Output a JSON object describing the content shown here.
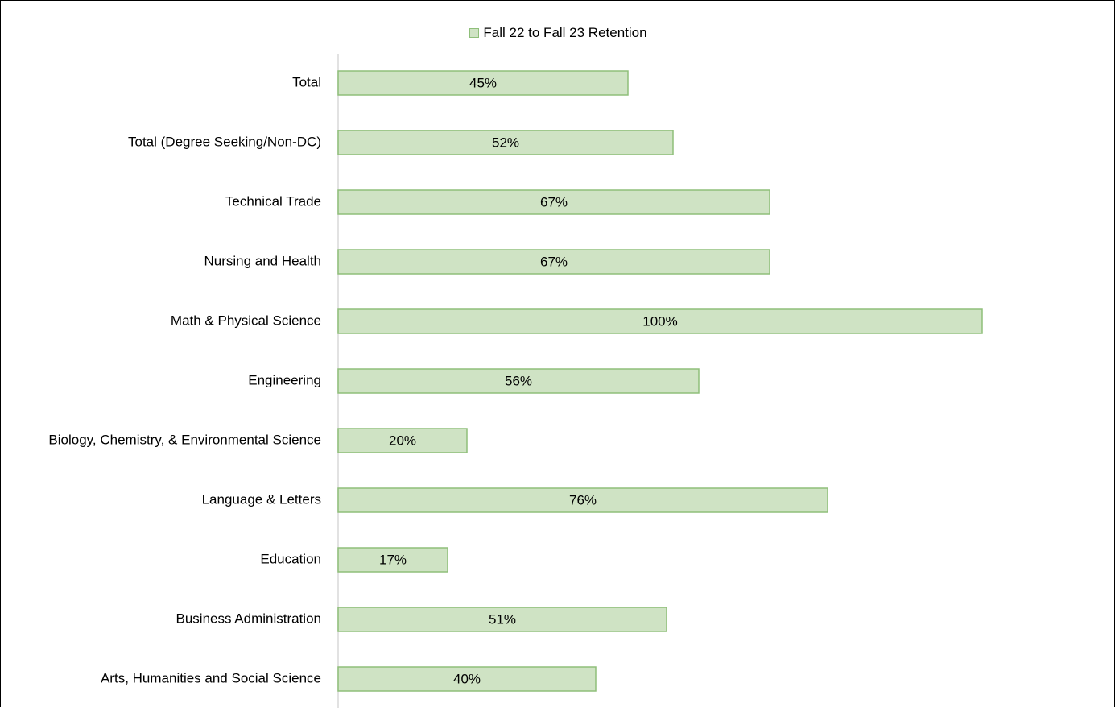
{
  "chart_data": {
    "type": "bar",
    "orientation": "horizontal",
    "categories": [
      "Total",
      "Total (Degree Seeking/Non-DC)",
      "Technical Trade",
      "Nursing and Health",
      "Math & Physical Science",
      "Engineering",
      "Biology, Chemistry, & Environmental Science",
      "Language & Letters",
      "Education",
      "Business Administration",
      "Arts, Humanities and Social Science"
    ],
    "series": [
      {
        "name": "Fall 22 to Fall 23 Retention",
        "values": [
          45,
          52,
          67,
          67,
          100,
          56,
          20,
          76,
          17,
          51,
          40
        ],
        "labels": [
          "45%",
          "52%",
          "67%",
          "67%",
          "100%",
          "56%",
          "20%",
          "76%",
          "17%",
          "51%",
          "40%"
        ],
        "color": "#cfe3c4",
        "border_color": "#8fbf7a"
      }
    ],
    "xlim": [
      0,
      100
    ],
    "unit": "%",
    "grid": false,
    "legend": "top-center"
  }
}
